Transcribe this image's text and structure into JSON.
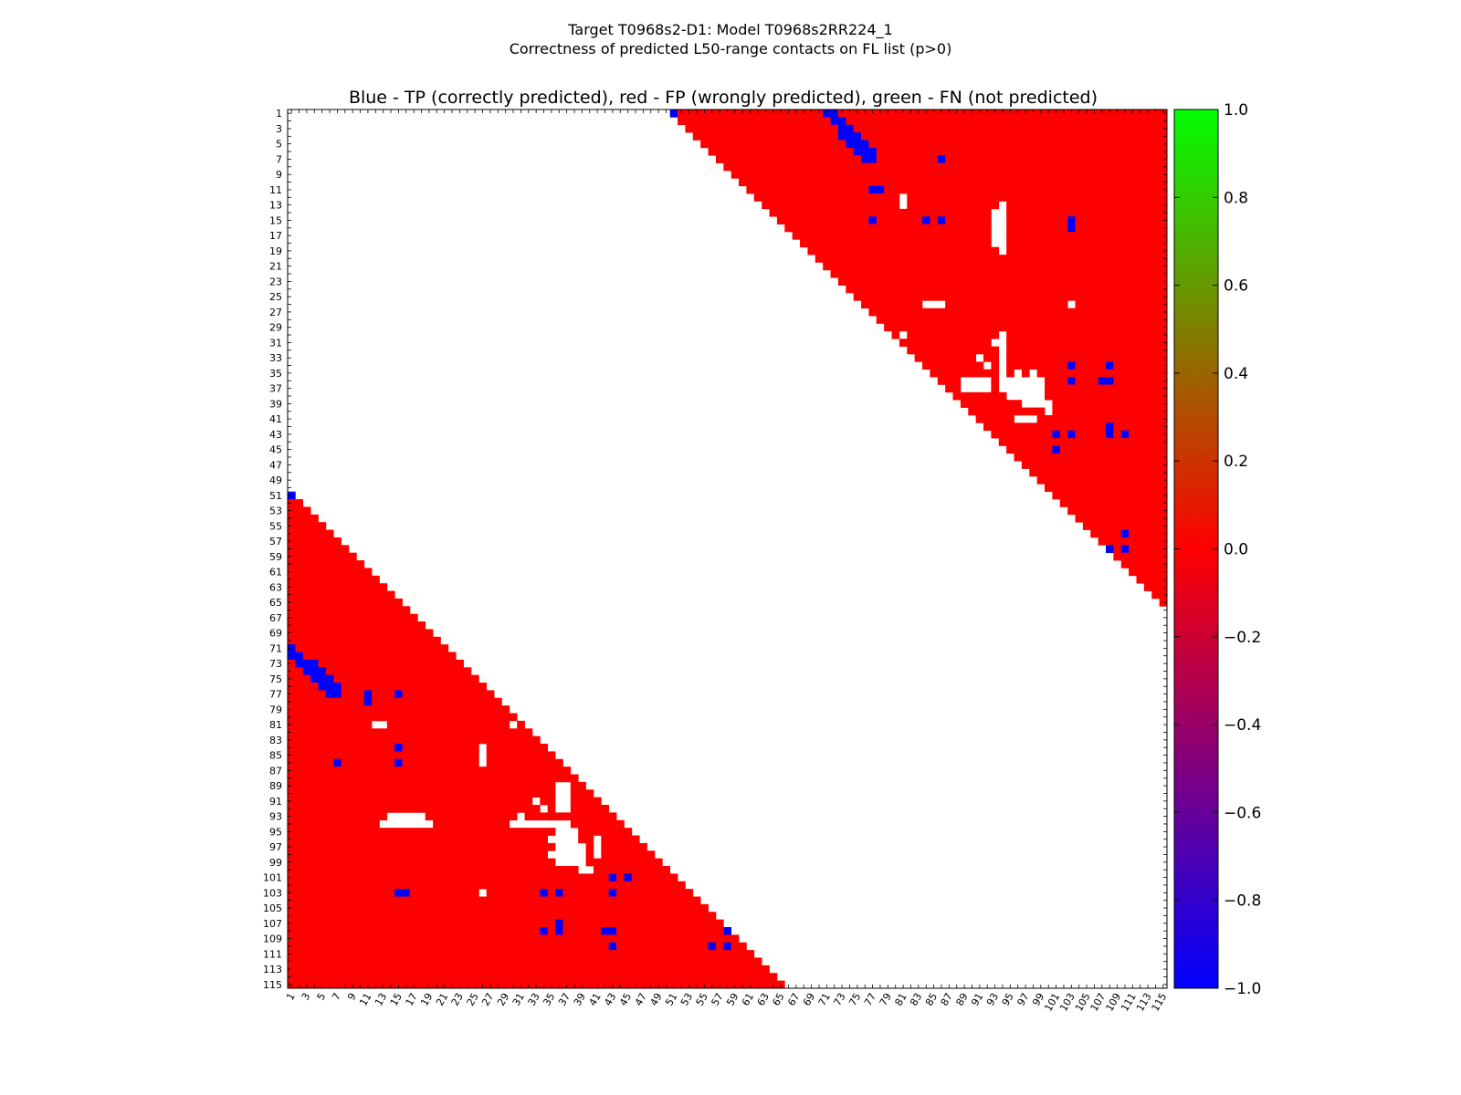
{
  "figure": {
    "title_line1": "Target T0968s2-D1: Model T0968s2RR224_1",
    "title_line2": "Correctness of predicted L50-range contacts on FL list (p>0)"
  },
  "chart_data": {
    "type": "heatmap",
    "title": "Blue - TP (correctly predicted), red - FP (wrongly predicted), green - FN (not predicted)",
    "n_residues": 115,
    "xlim": [
      1,
      115
    ],
    "ylim": [
      1,
      115
    ],
    "x_tick_labels": [
      "1",
      "3",
      "5",
      "7",
      "9",
      "11",
      "13",
      "15",
      "17",
      "19",
      "21",
      "23",
      "25",
      "27",
      "29",
      "31",
      "33",
      "35",
      "37",
      "39",
      "41",
      "43",
      "45",
      "47",
      "49",
      "51",
      "53",
      "55",
      "57",
      "59",
      "61",
      "63",
      "65",
      "67",
      "69",
      "71",
      "73",
      "75",
      "77",
      "79",
      "81",
      "83",
      "85",
      "87",
      "89",
      "91",
      "93",
      "95",
      "97",
      "99",
      "101",
      "103",
      "105",
      "107",
      "109",
      "111",
      "113",
      "115"
    ],
    "y_tick_labels": [
      "1",
      "3",
      "5",
      "7",
      "9",
      "11",
      "13",
      "15",
      "17",
      "19",
      "21",
      "23",
      "25",
      "27",
      "29",
      "31",
      "33",
      "35",
      "37",
      "39",
      "41",
      "43",
      "45",
      "47",
      "49",
      "51",
      "53",
      "55",
      "57",
      "59",
      "61",
      "63",
      "65",
      "67",
      "69",
      "71",
      "73",
      "75",
      "77",
      "79",
      "81",
      "83",
      "85",
      "87",
      "89",
      "91",
      "93",
      "95",
      "97",
      "99",
      "101",
      "103",
      "105",
      "107",
      "109",
      "111",
      "113",
      "115"
    ],
    "min_separation": 50,
    "value_scale": {
      "TP": -1.0,
      "FP": 0.0,
      "FN": 1.0
    },
    "colors": {
      "TP": "#0000ff",
      "FP": "#ff0000",
      "FN": "#00ff00"
    },
    "colorbar": {
      "range": [
        -1.0,
        1.0
      ],
      "tick_labels": [
        "1.0",
        "0.8",
        "0.6",
        "0.4",
        "0.2",
        "0.0",
        "−0.2",
        "−0.4",
        "−0.6",
        "−0.8",
        "−1.0"
      ],
      "stops": [
        "#00ff00",
        "#ff0000",
        "#0000ff"
      ]
    },
    "true_positives": [
      [
        1,
        51
      ],
      [
        1,
        71
      ],
      [
        1,
        72
      ],
      [
        2,
        72
      ],
      [
        2,
        73
      ],
      [
        3,
        73
      ],
      [
        3,
        74
      ],
      [
        4,
        73
      ],
      [
        4,
        74
      ],
      [
        4,
        75
      ],
      [
        5,
        74
      ],
      [
        5,
        75
      ],
      [
        5,
        76
      ],
      [
        6,
        75
      ],
      [
        6,
        76
      ],
      [
        6,
        77
      ],
      [
        7,
        76
      ],
      [
        7,
        77
      ],
      [
        7,
        86
      ],
      [
        11,
        77
      ],
      [
        11,
        78
      ],
      [
        15,
        77
      ],
      [
        15,
        84
      ],
      [
        15,
        86
      ],
      [
        15,
        103
      ],
      [
        16,
        103
      ],
      [
        34,
        103
      ],
      [
        34,
        108
      ],
      [
        36,
        103
      ],
      [
        36,
        107
      ],
      [
        36,
        108
      ],
      [
        42,
        108
      ],
      [
        43,
        101
      ],
      [
        43,
        103
      ],
      [
        43,
        108
      ],
      [
        43,
        110
      ],
      [
        45,
        101
      ],
      [
        56,
        110
      ],
      [
        58,
        108
      ],
      [
        58,
        110
      ]
    ],
    "false_positive_gaps": [
      [
        12,
        81
      ],
      [
        13,
        81
      ],
      [
        13,
        94
      ],
      [
        14,
        93
      ],
      [
        14,
        94
      ],
      [
        15,
        93
      ],
      [
        15,
        94
      ],
      [
        16,
        93
      ],
      [
        16,
        94
      ],
      [
        17,
        93
      ],
      [
        17,
        94
      ],
      [
        18,
        93
      ],
      [
        18,
        94
      ],
      [
        19,
        94
      ],
      [
        26,
        84
      ],
      [
        26,
        85
      ],
      [
        26,
        86
      ],
      [
        26,
        103
      ],
      [
        30,
        81
      ],
      [
        30,
        94
      ],
      [
        31,
        93
      ],
      [
        31,
        94
      ],
      [
        32,
        94
      ],
      [
        33,
        91
      ],
      [
        33,
        94
      ],
      [
        34,
        92
      ],
      [
        34,
        94
      ],
      [
        35,
        94
      ],
      [
        35,
        96
      ],
      [
        35,
        98
      ],
      [
        36,
        89
      ],
      [
        36,
        90
      ],
      [
        36,
        91
      ],
      [
        36,
        92
      ],
      [
        36,
        94
      ],
      [
        36,
        95
      ],
      [
        36,
        96
      ],
      [
        36,
        97
      ],
      [
        36,
        98
      ],
      [
        36,
        99
      ],
      [
        37,
        89
      ],
      [
        37,
        90
      ],
      [
        37,
        91
      ],
      [
        37,
        92
      ],
      [
        37,
        94
      ],
      [
        37,
        95
      ],
      [
        37,
        96
      ],
      [
        37,
        97
      ],
      [
        37,
        98
      ],
      [
        37,
        99
      ],
      [
        38,
        95
      ],
      [
        38,
        96
      ],
      [
        38,
        97
      ],
      [
        38,
        98
      ],
      [
        38,
        99
      ],
      [
        39,
        97
      ],
      [
        39,
        98
      ],
      [
        39,
        99
      ],
      [
        39,
        100
      ],
      [
        40,
        100
      ],
      [
        41,
        96
      ],
      [
        41,
        97
      ],
      [
        41,
        98
      ]
    ]
  }
}
